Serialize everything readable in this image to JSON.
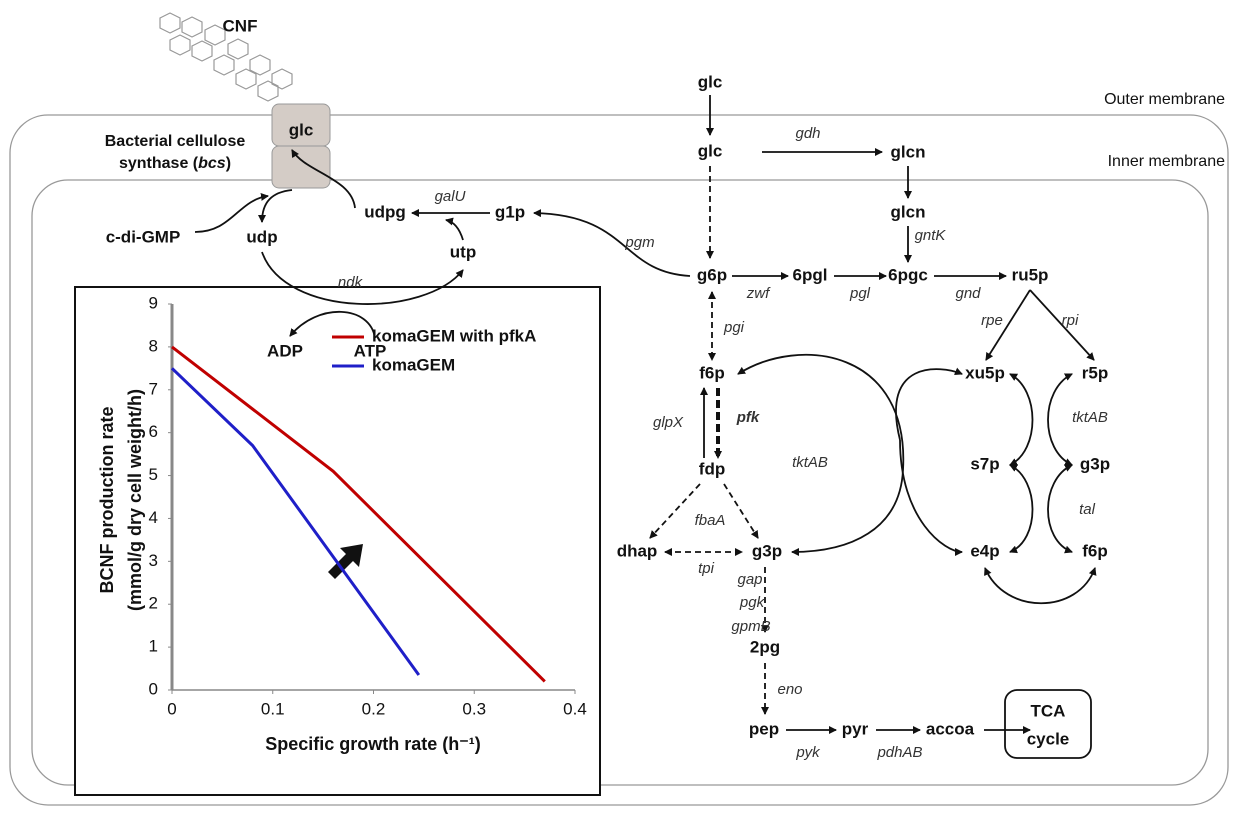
{
  "diagram": {
    "cnf": "CNF",
    "outer_membrane": "Outer membrane",
    "inner_membrane": "Inner membrane",
    "bcs_line1": "Bacterial cellulose",
    "bcs_line2_a": "synthase (",
    "bcs_line2_b": "bcs",
    "bcs_line2_c": ")",
    "nodes": [
      "glc",
      "glc",
      "glcn",
      "glcn",
      "g6p",
      "6pgl",
      "6pgc",
      "ru5p",
      "f6p",
      "fdp",
      "dhap",
      "g3p",
      "2pg",
      "pep",
      "pyr",
      "accoa",
      "xu5p",
      "r5p",
      "s7p",
      "g3p",
      "e4p",
      "f6p",
      "g1p",
      "udpg",
      "udp",
      "utp",
      "c-di-GMP",
      "ADP",
      "ATP",
      "glc"
    ],
    "enzymes": [
      "gdh",
      "gntK",
      "pgm",
      "galU",
      "ndk",
      "zwf",
      "pgl",
      "gnd",
      "pgi",
      "rpe",
      "rpi",
      "glpX",
      "pfk",
      "tktAB",
      "tktAB",
      "tal",
      "fbaA",
      "tpi",
      "gap",
      "pgk",
      "gpmB",
      "eno",
      "pyk",
      "pdhAB"
    ],
    "tca": [
      "TCA",
      "cycle"
    ]
  },
  "chart_data": {
    "type": "line",
    "x_label": "Specific growth rate (h⁻¹)",
    "y_label": [
      "BCNF production rate",
      "(mmol/g dry cell weight/h)"
    ],
    "xlim": [
      0,
      0.4
    ],
    "xticks": [
      0,
      0.1,
      0.2,
      0.3,
      0.4
    ],
    "ylim": [
      0,
      9
    ],
    "yticks": [
      0,
      1,
      2,
      3,
      4,
      5,
      6,
      7,
      8,
      9
    ],
    "series": [
      {
        "name": "komaGEM with pfkA",
        "color": "#c00000",
        "x": [
          0,
          0.16,
          0.37
        ],
        "values": [
          8,
          5.1,
          0.2
        ]
      },
      {
        "name": "komaGEM",
        "color": "#1f1fc8",
        "x": [
          0,
          0.08,
          0.245
        ],
        "values": [
          7.5,
          5.7,
          0.35
        ]
      }
    ]
  }
}
